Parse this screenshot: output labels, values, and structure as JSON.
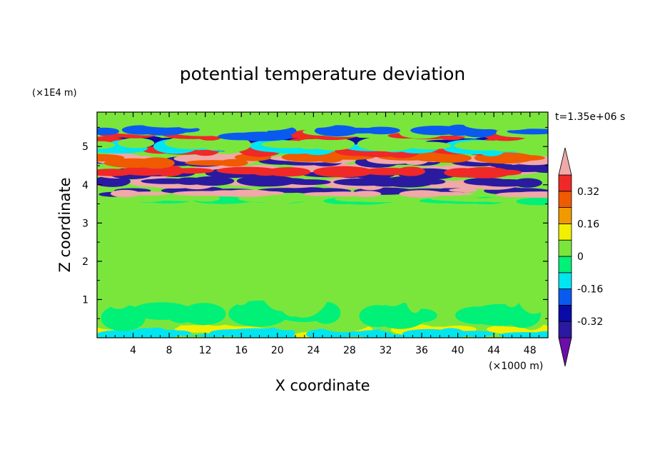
{
  "chart_data": {
    "type": "heatmap",
    "title": "potential temperature deviation",
    "xlabel": "X coordinate",
    "ylabel": "Z coordinate",
    "x_unit": "(×1000 m)",
    "y_unit": "(×1E4 m)",
    "time_label": "t=1.35e+06 s",
    "xlim": [
      0,
      50
    ],
    "ylim": [
      0,
      5.9
    ],
    "x_ticks": [
      4,
      8,
      12,
      16,
      20,
      24,
      28,
      32,
      36,
      40,
      44,
      48
    ],
    "y_ticks": [
      1,
      2,
      3,
      4,
      5
    ],
    "x_tick_labels": [
      "4",
      "8",
      "12",
      "16",
      "20",
      "24",
      "28",
      "32",
      "36",
      "40",
      "44",
      "48"
    ],
    "y_tick_labels": [
      "1",
      "2",
      "3",
      "4",
      "5"
    ],
    "colorbar": {
      "levels": [
        -0.4,
        -0.32,
        -0.24,
        -0.16,
        -0.08,
        0,
        0.08,
        0.16,
        0.24,
        0.32,
        0.4
      ],
      "tick_values": [
        -0.32,
        -0.16,
        0,
        0.16,
        0.32
      ],
      "tick_labels": [
        "-0.32",
        "-0.16",
        "0",
        "0.16",
        "0.32"
      ],
      "colors": [
        "#6a0fa8",
        "#2a1aa0",
        "#0a0aa8",
        "#0a5af0",
        "#00e6f0",
        "#00f078",
        "#7ae63c",
        "#f0f000",
        "#f09a00",
        "#f05a00",
        "#f02828",
        "#f0a8a8"
      ]
    },
    "bands": [
      {
        "z": [
          0.0,
          0.3
        ],
        "values": [
          0.0,
          -0.1,
          0.05,
          0.1,
          -0.15
        ]
      },
      {
        "z": [
          0.3,
          1.0
        ],
        "values": [
          0.0,
          0.02,
          0.03,
          -0.02
        ]
      },
      {
        "z": [
          1.0,
          3.5
        ],
        "values": [
          0.0,
          0.02,
          0.04
        ]
      },
      {
        "z": [
          3.5,
          3.7
        ],
        "values": [
          -0.05,
          0.0
        ]
      },
      {
        "z": [
          3.7,
          3.9
        ],
        "values": [
          -0.38,
          0.4
        ]
      },
      {
        "z": [
          3.9,
          4.2
        ],
        "values": [
          0.4,
          -0.38
        ]
      },
      {
        "z": [
          4.2,
          4.5
        ],
        "values": [
          0.4,
          -0.38,
          0.32
        ]
      },
      {
        "z": [
          4.5,
          4.8
        ],
        "values": [
          -0.38,
          0.4,
          0.3
        ]
      },
      {
        "z": [
          4.8,
          5.2
        ],
        "values": [
          -0.3,
          0.32,
          -0.16,
          0.0
        ]
      },
      {
        "z": [
          5.2,
          5.5
        ],
        "values": [
          0.32,
          0.0,
          -0.24
        ]
      },
      {
        "z": [
          5.5,
          5.9
        ],
        "values": [
          0.0,
          0.05
        ]
      }
    ]
  }
}
